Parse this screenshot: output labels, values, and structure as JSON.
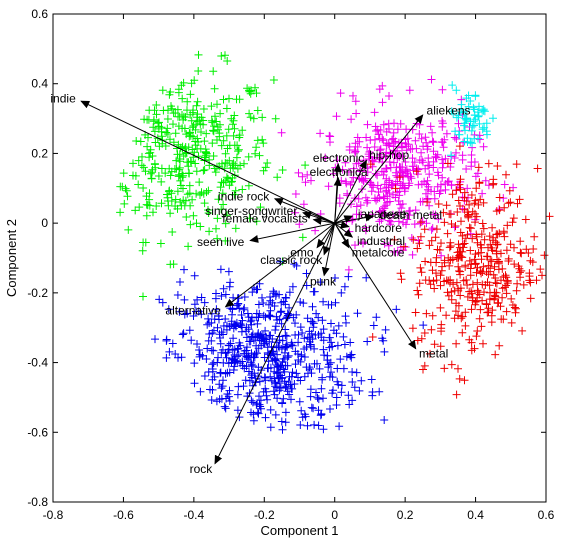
{
  "chart_data": {
    "type": "scatter",
    "xlabel": "Component 1",
    "ylabel": "Component 2",
    "xlim": [
      -0.8,
      0.6
    ],
    "ylim": [
      -0.8,
      0.6
    ],
    "xticks": [
      -0.8,
      -0.6,
      -0.4,
      -0.2,
      0,
      0.2,
      0.4,
      0.6
    ],
    "yticks": [
      -0.8,
      -0.6,
      -0.4,
      -0.2,
      0,
      0.2,
      0.4,
      0.6
    ],
    "marker": "+",
    "grid": false,
    "series": [
      {
        "color": "#00ee00",
        "cluster": {
          "cx": -0.42,
          "cy": 0.2,
          "rx": 0.22,
          "ry": 0.22,
          "n": 380
        }
      },
      {
        "color": "#0000ee",
        "cluster": {
          "cx": -0.2,
          "cy": -0.38,
          "rx": 0.26,
          "ry": 0.2,
          "n": 600
        }
      },
      {
        "color": "#ee00ee",
        "cluster": {
          "cx": 0.18,
          "cy": 0.14,
          "rx": 0.2,
          "ry": 0.17,
          "n": 420
        }
      },
      {
        "color": "#ee0000",
        "cluster": {
          "cx": 0.4,
          "cy": -0.12,
          "rx": 0.16,
          "ry": 0.25,
          "n": 380
        }
      },
      {
        "color": "#00eeee",
        "cluster": {
          "cx": 0.38,
          "cy": 0.3,
          "rx": 0.06,
          "ry": 0.08,
          "n": 60
        }
      }
    ],
    "vectors": [
      {
        "label": "indie",
        "x": -0.72,
        "y": 0.35
      },
      {
        "label": "rock",
        "x": -0.34,
        "y": -0.69
      },
      {
        "label": "alternative",
        "x": -0.31,
        "y": -0.24
      },
      {
        "label": "seen live",
        "x": -0.24,
        "y": -0.05
      },
      {
        "label": "indie rock",
        "x": -0.17,
        "y": 0.07
      },
      {
        "label": "singer-songwriter",
        "x": -0.09,
        "y": 0.03
      },
      {
        "label": "female vocalists",
        "x": -0.06,
        "y": 0.01
      },
      {
        "label": "electronic",
        "x": 0.01,
        "y": 0.17
      },
      {
        "label": "hip-hop",
        "x": 0.09,
        "y": 0.18
      },
      {
        "label": "electronica",
        "x": 0.01,
        "y": 0.13
      },
      {
        "label": "japanese",
        "x": 0.05,
        "y": 0.02
      },
      {
        "label": "death metal",
        "x": 0.11,
        "y": 0.02
      },
      {
        "label": "hardcore",
        "x": 0.04,
        "y": -0.01
      },
      {
        "label": "industrial",
        "x": 0.05,
        "y": -0.04
      },
      {
        "label": "metalcore",
        "x": 0.04,
        "y": -0.07
      },
      {
        "label": "emo",
        "x": -0.05,
        "y": -0.07
      },
      {
        "label": "classic rock",
        "x": -0.03,
        "y": -0.09
      },
      {
        "label": "punk",
        "x": -0.03,
        "y": -0.15
      },
      {
        "label": "metal",
        "x": 0.23,
        "y": -0.36
      },
      {
        "label": "aliekens",
        "x": 0.25,
        "y": 0.31
      }
    ]
  }
}
